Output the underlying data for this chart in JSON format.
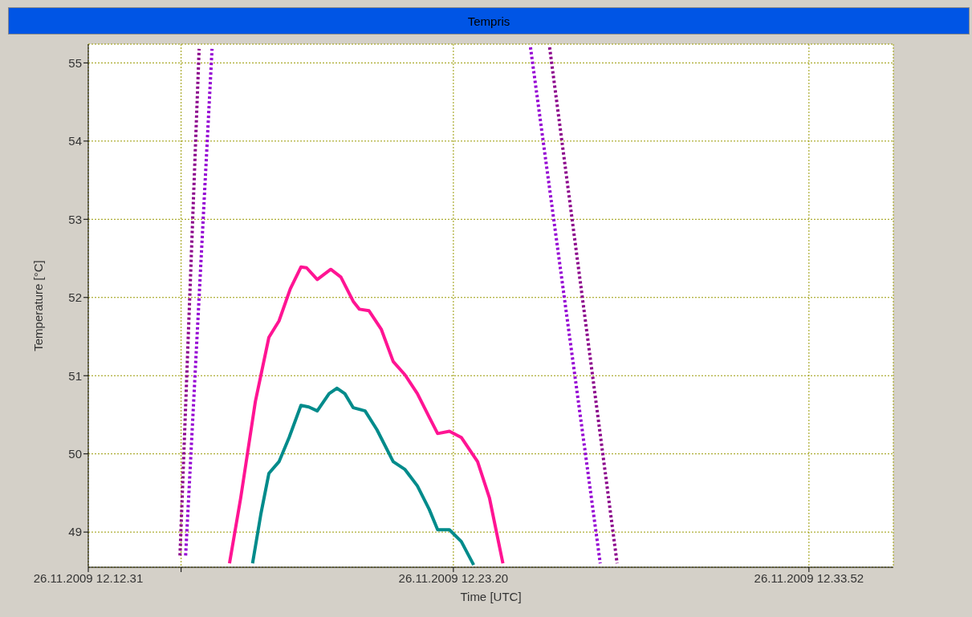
{
  "chart_data": {
    "type": "line",
    "title": "Tempris",
    "xlabel": "Time [UTC]",
    "ylabel": "Temperature [°C]",
    "xlim": [
      "2009-11-26T12:12:31",
      "2009-11-26T12:36:22"
    ],
    "ylim": [
      48.55,
      55.24
    ],
    "xticks": [
      {
        "value": "2009-11-26T12:12:31",
        "label": "26.11.2009 12.12.31"
      },
      {
        "value": "2009-11-26T12:15:16",
        "label": null
      },
      {
        "value": "2009-11-26T12:23:20",
        "label": "26.11.2009 12.23.20"
      },
      {
        "value": "2009-11-26T12:33:52",
        "label": "26.11.2009 12.33.52"
      }
    ],
    "yticks": [
      49,
      50,
      51,
      52,
      53,
      54,
      55
    ],
    "grid": true,
    "legend": false,
    "marker": "none",
    "series": [
      {
        "color": "#ff1493",
        "line_style": "solid",
        "x": [
          "2009-11-26T12:16:42",
          "2009-11-26T12:17:02",
          "2009-11-26T12:17:28",
          "2009-11-26T12:17:52",
          "2009-11-26T12:18:10",
          "2009-11-26T12:18:30",
          "2009-11-26T12:18:49",
          "2009-11-26T12:18:59",
          "2009-11-26T12:19:18",
          "2009-11-26T12:19:42",
          "2009-11-26T12:20:00",
          "2009-11-26T12:20:22",
          "2009-11-26T12:20:33",
          "2009-11-26T12:20:50",
          "2009-11-26T12:21:12",
          "2009-11-26T12:21:33",
          "2009-11-26T12:21:54",
          "2009-11-26T12:22:16",
          "2009-11-26T12:22:37",
          "2009-11-26T12:22:52",
          "2009-11-26T12:23:13",
          "2009-11-26T12:23:34",
          "2009-11-26T12:24:03",
          "2009-11-26T12:24:24",
          "2009-11-26T12:24:48"
        ],
        "values": [
          48.6,
          49.44,
          50.67,
          51.49,
          51.7,
          52.11,
          52.39,
          52.38,
          52.23,
          52.36,
          52.26,
          51.95,
          51.85,
          51.83,
          51.59,
          51.18,
          51.01,
          50.77,
          50.47,
          50.26,
          50.29,
          50.21,
          49.9,
          49.44,
          48.6
        ]
      },
      {
        "color": "#008b8b",
        "line_style": "solid",
        "x": [
          "2009-11-26T12:17:23",
          "2009-11-26T12:17:38",
          "2009-11-26T12:17:52",
          "2009-11-26T12:18:10",
          "2009-11-26T12:18:28",
          "2009-11-26T12:18:49",
          "2009-11-26T12:19:03",
          "2009-11-26T12:19:18",
          "2009-11-26T12:19:39",
          "2009-11-26T12:19:53",
          "2009-11-26T12:20:07",
          "2009-11-26T12:20:22",
          "2009-11-26T12:20:43",
          "2009-11-26T12:21:04",
          "2009-11-26T12:21:33",
          "2009-11-26T12:21:54",
          "2009-11-26T12:22:16",
          "2009-11-26T12:22:37",
          "2009-11-26T12:22:52",
          "2009-11-26T12:23:13",
          "2009-11-26T12:23:34",
          "2009-11-26T12:23:56"
        ],
        "values": [
          48.6,
          49.24,
          49.75,
          49.9,
          50.21,
          50.62,
          50.6,
          50.55,
          50.77,
          50.84,
          50.77,
          50.59,
          50.55,
          50.31,
          49.9,
          49.8,
          49.59,
          49.29,
          49.03,
          49.03,
          48.88,
          48.58
        ]
      },
      {
        "color": "#8b008b",
        "line_style": "dotted",
        "x": [
          "2009-11-26T12:15:14",
          "2009-11-26T12:15:48",
          "2009-11-26T12:21:00",
          "2009-11-26T12:26:11",
          "2009-11-26T12:28:11"
        ],
        "values": [
          48.7,
          55.18,
          null,
          55.2,
          48.6
        ]
      },
      {
        "color": "#9400d3",
        "line_style": "dotted",
        "x": [
          "2009-11-26T12:15:24",
          "2009-11-26T12:16:11",
          "2009-11-26T12:21:00",
          "2009-11-26T12:25:37",
          "2009-11-26T12:27:41"
        ],
        "values": [
          48.7,
          55.18,
          null,
          55.2,
          48.6
        ]
      }
    ]
  }
}
